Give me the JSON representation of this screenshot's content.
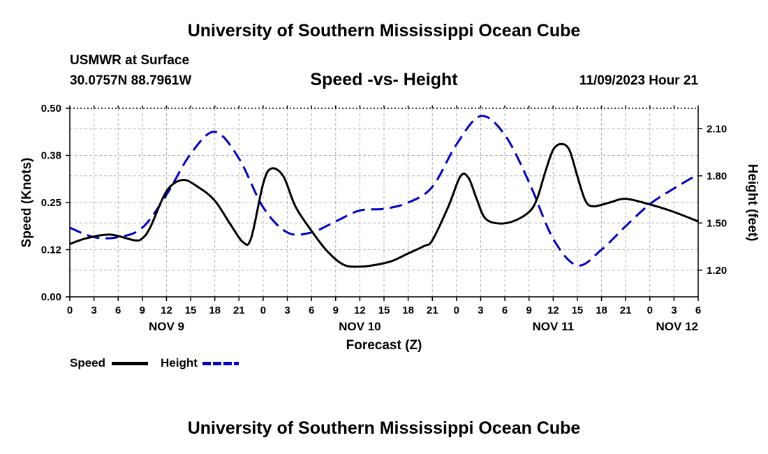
{
  "header": {
    "title": "University of Southern Mississippi Ocean Cube",
    "station": "USMWR at Surface",
    "coords": "30.0757N  88.7961W",
    "subtitle": "Speed -vs- Height",
    "datetime": "11/09/2023 Hour 21",
    "footer_title": "University of Southern Mississippi Ocean Cube"
  },
  "legend": {
    "speed_label": "Speed",
    "height_label": "Height"
  },
  "colors": {
    "speed": "#000000",
    "height": "#0000cc",
    "grid": "#b4b4b4"
  },
  "chart_data": {
    "type": "line",
    "title": "Speed -vs- Height",
    "xlabel": "Forecast (Z)",
    "ylabel_left": "Speed (Knots)",
    "ylabel_right": "Height (feet)",
    "x_unit": "hours since NOV 9 00Z",
    "xlim": [
      0,
      78
    ],
    "ylim_left": [
      0,
      0.5
    ],
    "ylim_right": [
      1.03,
      2.23
    ],
    "left_ticks": [
      "0.00",
      "0.12",
      "0.25",
      "0.38",
      "0.50"
    ],
    "left_tick_values": [
      0,
      0.125,
      0.25,
      0.375,
      0.5
    ],
    "right_ticks": [
      "1.20",
      "1.50",
      "1.80",
      "2.10"
    ],
    "right_tick_values": [
      1.2,
      1.5,
      1.8,
      2.1
    ],
    "x_ticks": [
      "0",
      "3",
      "6",
      "9",
      "12",
      "15",
      "18",
      "21",
      "0",
      "3",
      "6",
      "9",
      "12",
      "15",
      "18",
      "21",
      "0",
      "3",
      "6",
      "9",
      "12",
      "15",
      "18",
      "21",
      "0",
      "3",
      "6"
    ],
    "x_tick_values": [
      0,
      3,
      6,
      9,
      12,
      15,
      18,
      21,
      24,
      27,
      30,
      33,
      36,
      39,
      42,
      45,
      48,
      51,
      54,
      57,
      60,
      63,
      66,
      69,
      72,
      75,
      78
    ],
    "date_labels": [
      {
        "label": "NOV 9",
        "x": 12
      },
      {
        "label": "NOV 10",
        "x": 36
      },
      {
        "label": "NOV 11",
        "x": 60
      },
      {
        "label": "NOV 12",
        "x": 78
      }
    ],
    "grid": true,
    "series": [
      {
        "name": "Speed",
        "axis": "left",
        "style": "solid",
        "points": [
          [
            0,
            0.14
          ],
          [
            2,
            0.155
          ],
          [
            5,
            0.165
          ],
          [
            8,
            0.15
          ],
          [
            9,
            0.155
          ],
          [
            10,
            0.185
          ],
          [
            12,
            0.28
          ],
          [
            14,
            0.31
          ],
          [
            16,
            0.29
          ],
          [
            18,
            0.255
          ],
          [
            20,
            0.19
          ],
          [
            21.5,
            0.145
          ],
          [
            22.5,
            0.155
          ],
          [
            24,
            0.3
          ],
          [
            25,
            0.34
          ],
          [
            26.5,
            0.32
          ],
          [
            28,
            0.24
          ],
          [
            30,
            0.175
          ],
          [
            32,
            0.12
          ],
          [
            34,
            0.085
          ],
          [
            36,
            0.08
          ],
          [
            38,
            0.085
          ],
          [
            40,
            0.095
          ],
          [
            42,
            0.115
          ],
          [
            44,
            0.135
          ],
          [
            45,
            0.15
          ],
          [
            47,
            0.24
          ],
          [
            48.5,
            0.32
          ],
          [
            49.5,
            0.315
          ],
          [
            50.5,
            0.26
          ],
          [
            51.5,
            0.21
          ],
          [
            53,
            0.195
          ],
          [
            55,
            0.2
          ],
          [
            57,
            0.225
          ],
          [
            58,
            0.26
          ],
          [
            59,
            0.33
          ],
          [
            60,
            0.39
          ],
          [
            61,
            0.405
          ],
          [
            62,
            0.39
          ],
          [
            63,
            0.32
          ],
          [
            64,
            0.255
          ],
          [
            65,
            0.24
          ],
          [
            67,
            0.25
          ],
          [
            69,
            0.26
          ],
          [
            72,
            0.245
          ],
          [
            75,
            0.225
          ],
          [
            78,
            0.2
          ]
        ]
      },
      {
        "name": "Height",
        "axis": "right",
        "style": "dashed",
        "points": [
          [
            0,
            1.47
          ],
          [
            3,
            1.41
          ],
          [
            6,
            1.41
          ],
          [
            9,
            1.47
          ],
          [
            12,
            1.68
          ],
          [
            15,
            1.94
          ],
          [
            18,
            2.08
          ],
          [
            21,
            1.91
          ],
          [
            24,
            1.6
          ],
          [
            27,
            1.44
          ],
          [
            30,
            1.44
          ],
          [
            33,
            1.51
          ],
          [
            36,
            1.58
          ],
          [
            39,
            1.59
          ],
          [
            42,
            1.63
          ],
          [
            45,
            1.73
          ],
          [
            48,
            2.0
          ],
          [
            51,
            2.18
          ],
          [
            54,
            2.06
          ],
          [
            57,
            1.76
          ],
          [
            60,
            1.4
          ],
          [
            63,
            1.23
          ],
          [
            66,
            1.33
          ],
          [
            69,
            1.48
          ],
          [
            72,
            1.62
          ],
          [
            75,
            1.72
          ],
          [
            78,
            1.81
          ]
        ]
      }
    ]
  }
}
